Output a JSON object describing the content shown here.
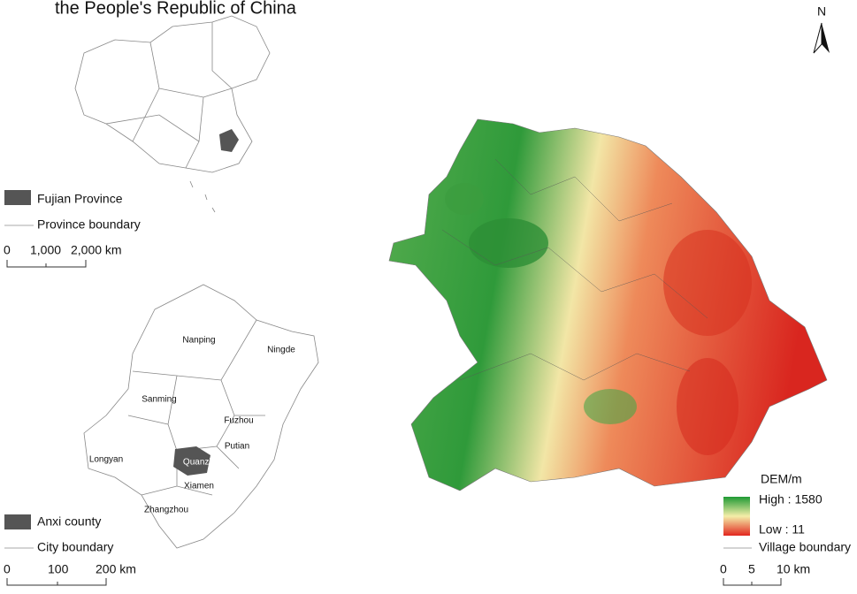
{
  "title": "the People's Republic of China",
  "north": "N",
  "china_legend": {
    "highlight": "Fujian Province",
    "boundary": "Province boundary",
    "scale": [
      "0",
      "1,000",
      "2,000 km"
    ]
  },
  "fujian_map": {
    "cities": [
      "Nanping",
      "Ningde",
      "Sanming",
      "Fuzhou",
      "Putian",
      "Longyan",
      "Quanzhou",
      "Xiamen",
      "Zhangzhou"
    ]
  },
  "fujian_legend": {
    "highlight": "Anxi county",
    "boundary": "City boundary",
    "scale": [
      "0",
      "100",
      "200 km"
    ]
  },
  "dem_legend": {
    "title": "DEM/m",
    "high": "High : 1580",
    "low": "Low : 11",
    "boundary": "Village boundary",
    "scale": [
      "0",
      "5",
      "10 km"
    ]
  }
}
